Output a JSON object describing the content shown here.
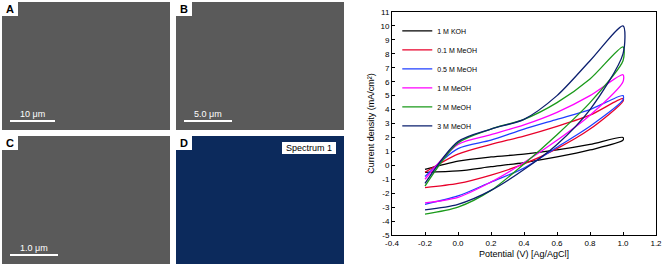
{
  "chart_data": {
    "type": "line",
    "xlabel": "Potential (V) [Ag/AgCl]",
    "ylabel": "Current density (mA/cm²)",
    "x": [
      -0.2,
      0.0,
      0.2,
      0.4,
      0.6,
      0.8,
      1.0,
      1.0,
      0.8,
      0.6,
      0.4,
      0.2,
      0.0,
      -0.2
    ],
    "series": [
      {
        "name": "1 M KOH",
        "color": "#000000",
        "values": [
          -0.3,
          0.3,
          0.6,
          0.8,
          1.1,
          1.5,
          2.0,
          1.8,
          1.1,
          0.6,
          0.2,
          -0.1,
          -0.4,
          -0.5
        ]
      },
      {
        "name": "0.1 M MeOH",
        "color": "#e8002a",
        "values": [
          -0.5,
          0.8,
          1.5,
          2.1,
          2.8,
          3.6,
          4.8,
          4.6,
          2.6,
          1.2,
          0.1,
          -0.7,
          -1.3,
          -1.6
        ]
      },
      {
        "name": "0.5 M MeOH",
        "color": "#1f3fff",
        "values": [
          -0.8,
          1.2,
          1.8,
          2.6,
          3.3,
          4.0,
          5.0,
          4.7,
          2.8,
          1.3,
          -0.2,
          -1.2,
          -2.2,
          -2.8
        ]
      },
      {
        "name": "1 M MeOH",
        "color": "#ff00ff",
        "values": [
          -1.0,
          1.5,
          2.2,
          2.9,
          3.8,
          5.0,
          6.5,
          6.0,
          3.6,
          1.8,
          0.2,
          -1.2,
          -2.3,
          -2.7
        ]
      },
      {
        "name": "2 M MeOH",
        "color": "#1a9a1a",
        "values": [
          -1.5,
          1.6,
          2.6,
          3.3,
          4.5,
          6.2,
          8.5,
          7.5,
          4.5,
          2.2,
          0.1,
          -1.8,
          -3.0,
          -3.5
        ]
      },
      {
        "name": "3 M MeOH",
        "color": "#0b1f6e",
        "values": [
          -1.3,
          1.7,
          2.6,
          3.3,
          5.0,
          7.5,
          10.0,
          8.0,
          4.0,
          1.5,
          -0.3,
          -1.8,
          -2.8,
          -3.2
        ]
      }
    ],
    "xlim": [
      -0.4,
      1.2
    ],
    "xticks": [
      -0.4,
      -0.2,
      {
        "value": 0,
        "label": "0.0"
      },
      0.2,
      0.4,
      0.6,
      0.8,
      {
        "value": 1,
        "label": "1.0"
      },
      1.2
    ],
    "ylim": [
      -5,
      11
    ],
    "yticks": [
      -5,
      -4,
      -3,
      -2,
      -1,
      0,
      1,
      2,
      3,
      4,
      5,
      6,
      7,
      8,
      9,
      10,
      11
    ],
    "grid": false,
    "legend": "upper left"
  },
  "panels": [
    {
      "label": "A",
      "scale_bar": "10 μm"
    },
    {
      "label": "B",
      "scale_bar": "5.0 μm"
    },
    {
      "label": "C",
      "scale_bar": "1.0 μm"
    },
    {
      "label": "D",
      "text": "Spectrum 1"
    }
  ]
}
